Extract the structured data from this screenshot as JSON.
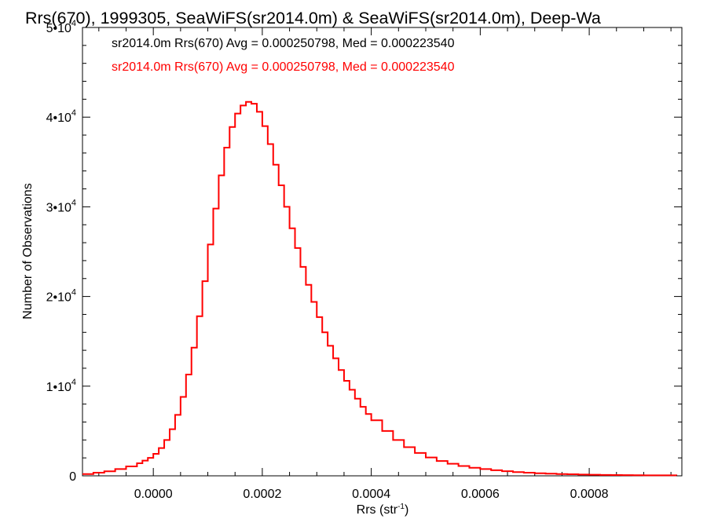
{
  "chart_data": {
    "type": "line",
    "title": "Rrs(670), 1999305, SeaWiFS(sr2014.0m) & SeaWiFS(sr2014.0m), Deep-Wa",
    "xlabel": "Rrs (str",
    "xlabel_sup": "-1",
    "xlabel_close": ")",
    "ylabel": "Number of Observations",
    "xlim": [
      -0.00013,
      0.00097
    ],
    "ylim": [
      0,
      50000
    ],
    "x_ticks": [
      {
        "value": 0.0,
        "label": "0.0000"
      },
      {
        "value": 0.0002,
        "label": "0.0002"
      },
      {
        "value": 0.0004,
        "label": "0.0004"
      },
      {
        "value": 0.0006,
        "label": "0.0006"
      },
      {
        "value": 0.0008,
        "label": "0.0008"
      }
    ],
    "y_ticks": [
      {
        "value": 0,
        "mantissa": "0",
        "exp": ""
      },
      {
        "value": 10000,
        "mantissa": "1•10",
        "exp": "4"
      },
      {
        "value": 20000,
        "mantissa": "2•10",
        "exp": "4"
      },
      {
        "value": 30000,
        "mantissa": "3•10",
        "exp": "4"
      },
      {
        "value": 40000,
        "mantissa": "4•10",
        "exp": "4"
      },
      {
        "value": 50000,
        "mantissa": "5•10",
        "exp": "4"
      }
    ],
    "legend_placement": "top-left",
    "annotations": [
      {
        "text": "sr2014.0m Rrs(670) Avg = 0.000250798, Med = 0.000223540",
        "color": "#000000"
      },
      {
        "text": "sr2014.0m Rrs(670) Avg = 0.000250798, Med = 0.000223540",
        "color": "#ff0000"
      }
    ],
    "series": [
      {
        "color": "#ff0000",
        "step": true,
        "x": [
          -0.00013,
          -0.00011,
          -9e-05,
          -7e-05,
          -5e-05,
          -3e-05,
          -2e-05,
          -1e-05,
          0.0,
          1e-05,
          2e-05,
          3e-05,
          4e-05,
          5e-05,
          6e-05,
          7e-05,
          8e-05,
          9e-05,
          0.0001,
          0.00011,
          0.00012,
          0.00013,
          0.00014,
          0.00015,
          0.00016,
          0.00017,
          0.00018,
          0.00019,
          0.0002,
          0.00021,
          0.00022,
          0.00023,
          0.00024,
          0.00025,
          0.00026,
          0.00027,
          0.00028,
          0.00029,
          0.0003,
          0.00031,
          0.00032,
          0.00033,
          0.00034,
          0.00035,
          0.00036,
          0.00037,
          0.00038,
          0.00039,
          0.0004,
          0.00042,
          0.00044,
          0.00046,
          0.00048,
          0.0005,
          0.00052,
          0.00054,
          0.00056,
          0.00058,
          0.0006,
          0.00062,
          0.00064,
          0.00066,
          0.00068,
          0.0007,
          0.00072,
          0.00074,
          0.00076,
          0.00078,
          0.0008,
          0.00082,
          0.00084,
          0.00086,
          0.00088,
          0.0009,
          0.00092,
          0.00094,
          0.00096
        ],
        "y": [
          200,
          350,
          500,
          750,
          1050,
          1400,
          1700,
          2000,
          2450,
          3100,
          4000,
          5200,
          6800,
          8800,
          11300,
          14300,
          17800,
          21700,
          25800,
          29800,
          33500,
          36600,
          38900,
          40400,
          41300,
          41700,
          41500,
          40600,
          39000,
          37000,
          34700,
          32400,
          30000,
          27600,
          25400,
          23300,
          21300,
          19400,
          17700,
          16000,
          14500,
          13100,
          11800,
          10600,
          9600,
          8600,
          7700,
          6900,
          6200,
          5000,
          4000,
          3200,
          2550,
          2050,
          1650,
          1350,
          1100,
          900,
          750,
          620,
          510,
          420,
          350,
          290,
          240,
          200,
          170,
          140,
          120,
          100,
          90,
          80,
          70,
          60,
          55,
          50,
          45
        ]
      }
    ]
  }
}
